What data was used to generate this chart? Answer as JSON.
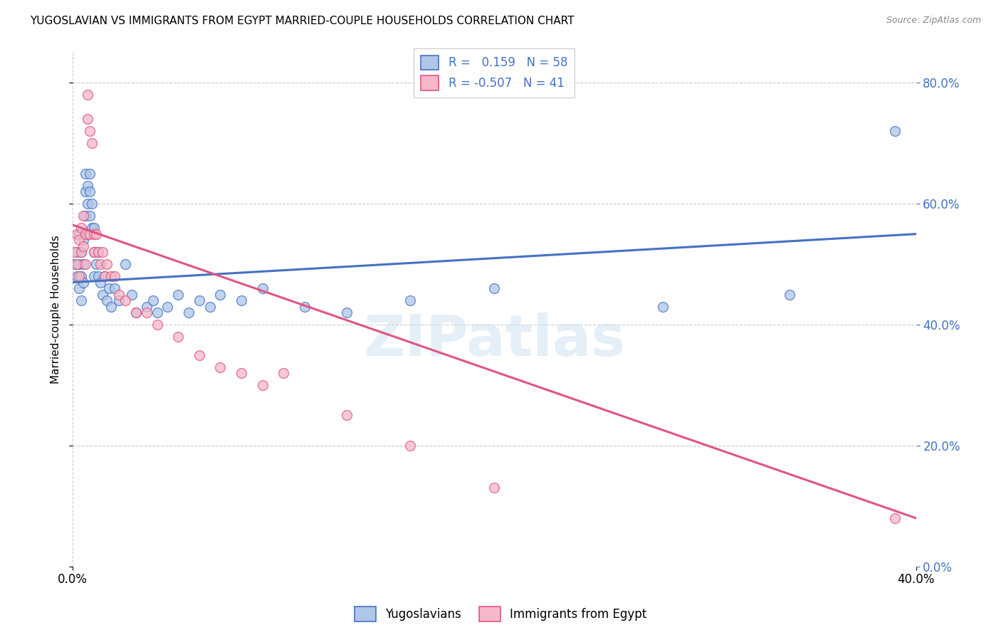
{
  "title": "YUGOSLAVIAN VS IMMIGRANTS FROM EGYPT MARRIED-COUPLE HOUSEHOLDS CORRELATION CHART",
  "source": "Source: ZipAtlas.com",
  "ylabel": "Married-couple Households",
  "legend_blue_label": "Yugoslavians",
  "legend_pink_label": "Immigrants from Egypt",
  "R_blue": 0.159,
  "N_blue": 58,
  "R_pink": -0.507,
  "N_pink": 41,
  "blue_color": "#aec6e8",
  "pink_color": "#f5b8c8",
  "blue_line_color": "#4472c4",
  "pink_line_color": "#e05580",
  "watermark": "ZIPatlas",
  "xlim": [
    0.0,
    0.4
  ],
  "ylim": [
    0.0,
    0.85
  ],
  "xticks": [
    0.0,
    0.4
  ],
  "yticks": [
    0.0,
    0.2,
    0.4,
    0.6,
    0.8
  ],
  "blue_scatter_x": [
    0.001,
    0.002,
    0.002,
    0.003,
    0.003,
    0.003,
    0.004,
    0.004,
    0.004,
    0.005,
    0.005,
    0.005,
    0.006,
    0.006,
    0.006,
    0.007,
    0.007,
    0.007,
    0.008,
    0.008,
    0.008,
    0.009,
    0.009,
    0.01,
    0.01,
    0.01,
    0.011,
    0.012,
    0.012,
    0.013,
    0.014,
    0.015,
    0.016,
    0.017,
    0.018,
    0.02,
    0.022,
    0.025,
    0.028,
    0.03,
    0.035,
    0.038,
    0.04,
    0.045,
    0.05,
    0.055,
    0.06,
    0.065,
    0.07,
    0.08,
    0.09,
    0.11,
    0.13,
    0.16,
    0.2,
    0.28,
    0.34,
    0.39
  ],
  "blue_scatter_y": [
    0.5,
    0.52,
    0.48,
    0.55,
    0.5,
    0.46,
    0.52,
    0.48,
    0.44,
    0.5,
    0.54,
    0.47,
    0.62,
    0.65,
    0.58,
    0.63,
    0.6,
    0.55,
    0.62,
    0.65,
    0.58,
    0.56,
    0.6,
    0.52,
    0.48,
    0.56,
    0.5,
    0.48,
    0.52,
    0.47,
    0.45,
    0.48,
    0.44,
    0.46,
    0.43,
    0.46,
    0.44,
    0.5,
    0.45,
    0.42,
    0.43,
    0.44,
    0.42,
    0.43,
    0.45,
    0.42,
    0.44,
    0.43,
    0.45,
    0.44,
    0.46,
    0.43,
    0.42,
    0.44,
    0.46,
    0.43,
    0.45,
    0.72
  ],
  "pink_scatter_x": [
    0.001,
    0.002,
    0.002,
    0.003,
    0.003,
    0.004,
    0.004,
    0.005,
    0.005,
    0.006,
    0.006,
    0.007,
    0.007,
    0.008,
    0.008,
    0.009,
    0.01,
    0.01,
    0.011,
    0.012,
    0.013,
    0.014,
    0.015,
    0.016,
    0.018,
    0.02,
    0.022,
    0.025,
    0.03,
    0.035,
    0.04,
    0.05,
    0.06,
    0.07,
    0.08,
    0.09,
    0.1,
    0.13,
    0.16,
    0.2,
    0.39
  ],
  "pink_scatter_y": [
    0.52,
    0.55,
    0.5,
    0.54,
    0.48,
    0.56,
    0.52,
    0.58,
    0.53,
    0.55,
    0.5,
    0.78,
    0.74,
    0.55,
    0.72,
    0.7,
    0.52,
    0.55,
    0.55,
    0.52,
    0.5,
    0.52,
    0.48,
    0.5,
    0.48,
    0.48,
    0.45,
    0.44,
    0.42,
    0.42,
    0.4,
    0.38,
    0.35,
    0.33,
    0.32,
    0.3,
    0.32,
    0.25,
    0.2,
    0.13,
    0.08
  ]
}
